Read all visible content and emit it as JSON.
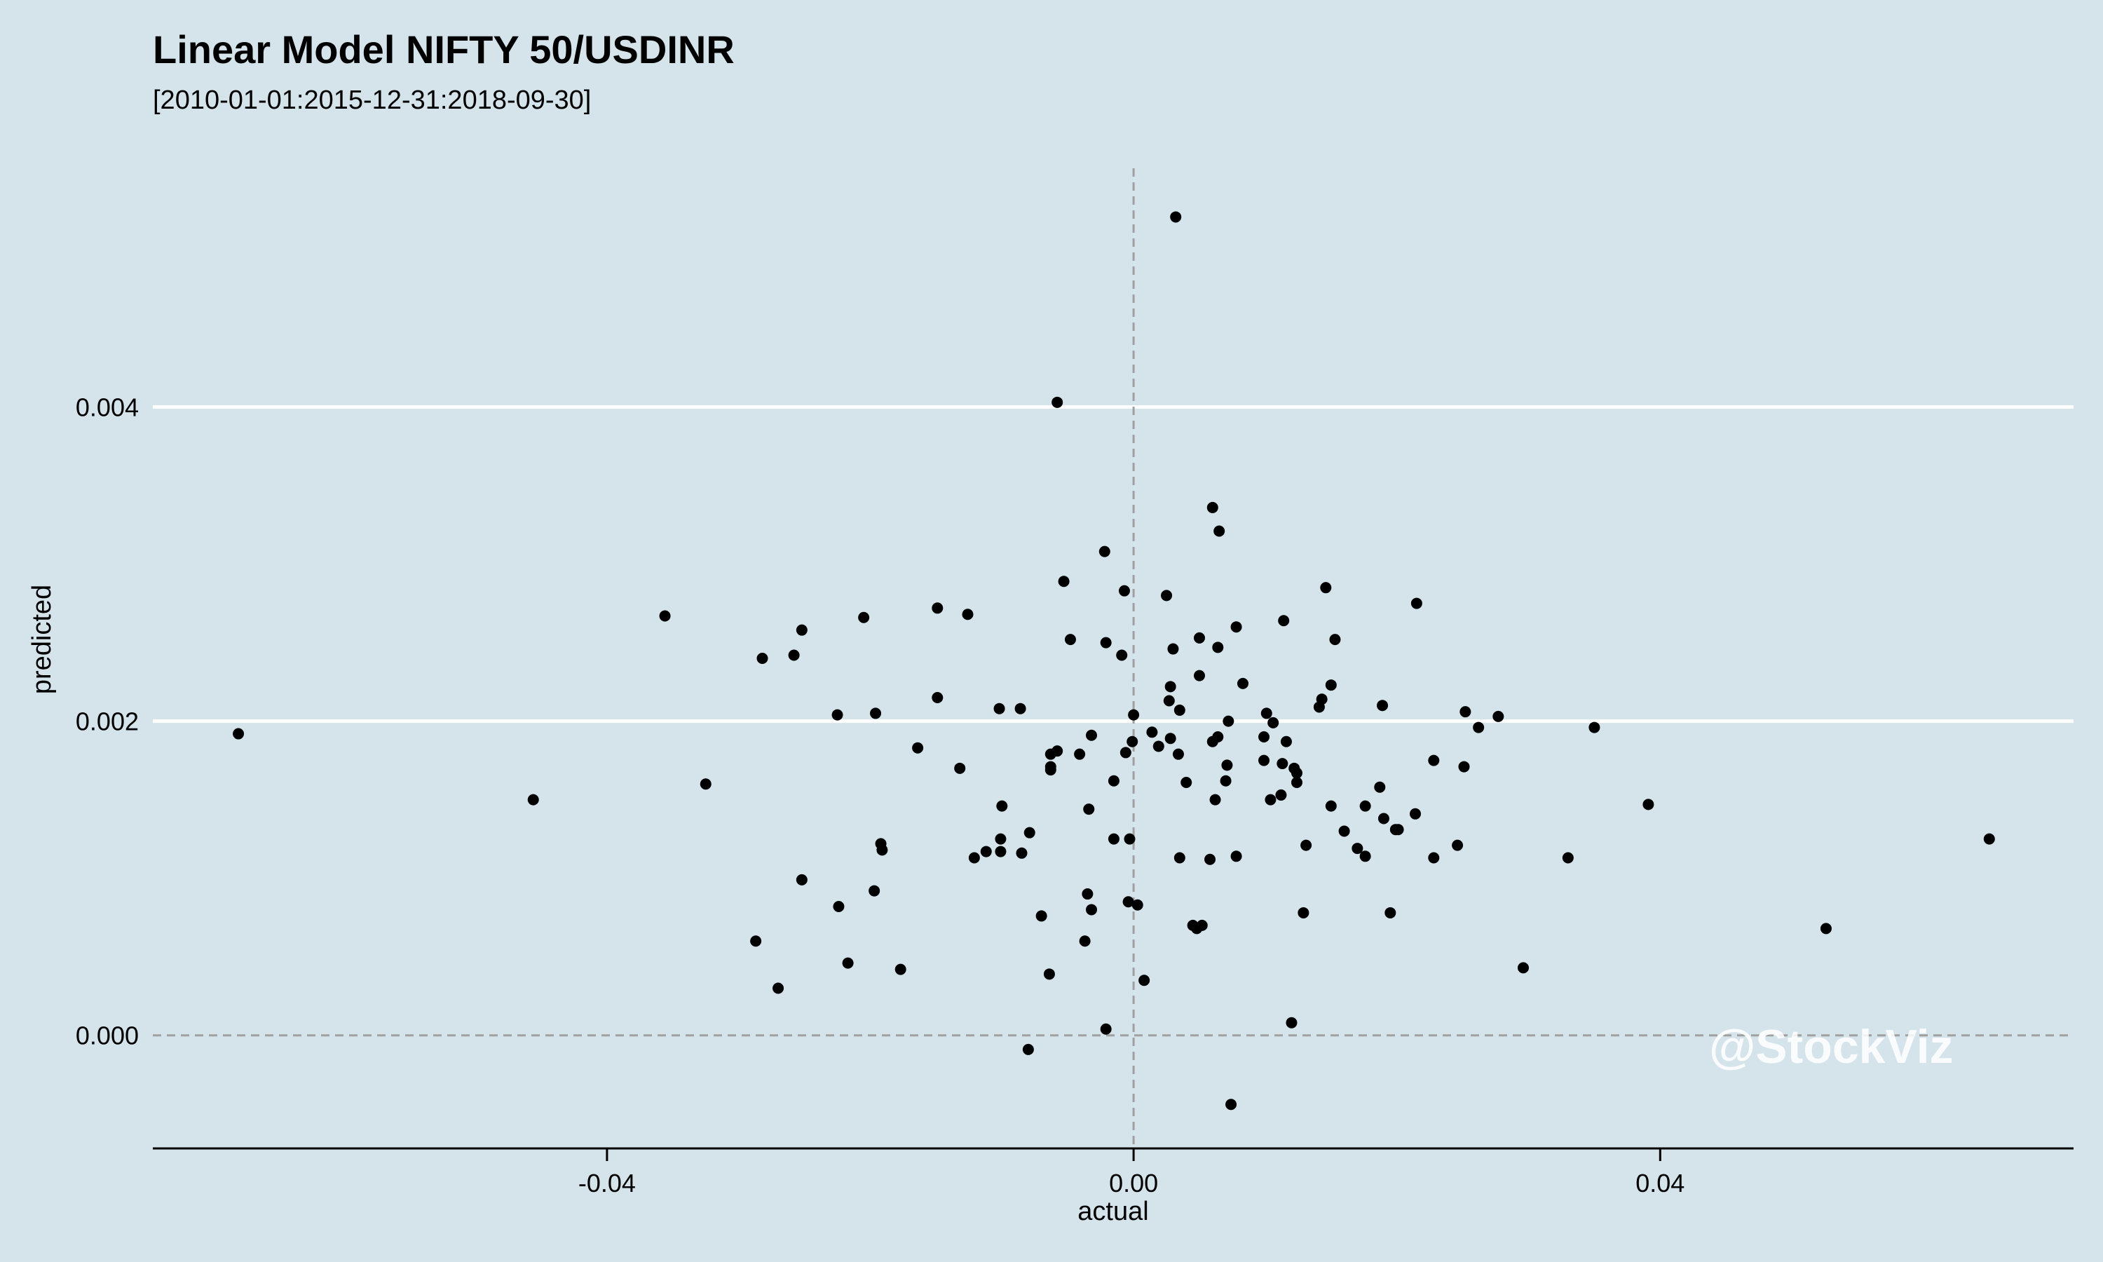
{
  "chart_data": {
    "type": "scatter",
    "title": "Linear Model NIFTY 50/USDINR",
    "subtitle": "[2010-01-01:2015-12-31:2018-09-30]",
    "xlabel": "actual",
    "ylabel": "predicted",
    "xlim": [
      -0.0745,
      0.0714
    ],
    "ylim": [
      -0.00072,
      0.00552
    ],
    "xticks": [
      -0.04,
      0.0,
      0.04
    ],
    "xtick_labels": [
      "-0.04",
      "0.00",
      "0.04"
    ],
    "yticks": [
      0.0,
      0.002,
      0.004
    ],
    "ytick_labels": [
      "0.000",
      "0.002",
      "0.004"
    ],
    "reference_lines": {
      "x": 0.0,
      "y": 0.0,
      "style": "dashed"
    },
    "grid": "horizontal major",
    "watermark": "@StockViz",
    "colors": {
      "background": "#d5e4eb",
      "points": "#000000",
      "grid": "#ffffff",
      "reference": "#a0a0a0",
      "watermark": "#ffffff"
    },
    "points": [
      [
        -0.068,
        0.00192
      ],
      [
        -0.0456,
        0.0015
      ],
      [
        -0.0356,
        0.00267
      ],
      [
        -0.0325,
        0.0016
      ],
      [
        -0.0282,
        0.0024
      ],
      [
        -0.0287,
        0.0006
      ],
      [
        -0.027,
        0.0003
      ],
      [
        -0.0258,
        0.00242
      ],
      [
        -0.0252,
        0.00258
      ],
      [
        -0.0252,
        0.00099
      ],
      [
        -0.0225,
        0.00204
      ],
      [
        -0.0224,
        0.00082
      ],
      [
        -0.0217,
        0.00046
      ],
      [
        -0.0205,
        0.00266
      ],
      [
        -0.0196,
        0.00205
      ],
      [
        -0.0197,
        0.00092
      ],
      [
        -0.0192,
        0.00122
      ],
      [
        -0.0191,
        0.00118
      ],
      [
        -0.0177,
        0.00042
      ],
      [
        -0.0164,
        0.00183
      ],
      [
        -0.0149,
        0.00272
      ],
      [
        -0.0149,
        0.00215
      ],
      [
        -0.0132,
        0.0017
      ],
      [
        -0.0126,
        0.00268
      ],
      [
        -0.0121,
        0.00113
      ],
      [
        -0.0112,
        0.00117
      ],
      [
        -0.0102,
        0.00208
      ],
      [
        -0.01,
        0.00146
      ],
      [
        -0.0101,
        0.00125
      ],
      [
        -0.0101,
        0.00117
      ],
      [
        -0.0086,
        0.00208
      ],
      [
        -0.0085,
        0.00116
      ],
      [
        -0.0079,
        0.00129
      ],
      [
        -0.008,
        -9e-05
      ],
      [
        -0.007,
        0.00076
      ],
      [
        -0.0064,
        0.00039
      ],
      [
        -0.0063,
        0.00179
      ],
      [
        -0.0063,
        0.00171
      ],
      [
        -0.0063,
        0.00169
      ],
      [
        -0.0058,
        0.00181
      ],
      [
        -0.0058,
        0.00403
      ],
      [
        -0.0053,
        0.00289
      ],
      [
        -0.0048,
        0.00252
      ],
      [
        -0.0041,
        0.00179
      ],
      [
        -0.0037,
        0.0006
      ],
      [
        -0.0035,
        0.0009
      ],
      [
        -0.0034,
        0.00144
      ],
      [
        -0.0032,
        0.0008
      ],
      [
        -0.0032,
        0.00191
      ],
      [
        -0.0022,
        0.00308
      ],
      [
        -0.0021,
        0.0025
      ],
      [
        -0.0021,
        4e-05
      ],
      [
        -0.0015,
        0.00162
      ],
      [
        -0.0015,
        0.00125
      ],
      [
        -0.0009,
        0.00242
      ],
      [
        -0.0007,
        0.00283
      ],
      [
        -0.0006,
        0.0018
      ],
      [
        -0.0004,
        0.00085
      ],
      [
        -0.0003,
        0.00125
      ],
      [
        -0.0001,
        0.00187
      ],
      [
        0.0,
        0.00204
      ],
      [
        0.0003,
        0.00083
      ],
      [
        0.0008,
        0.00035
      ],
      [
        0.0014,
        0.00193
      ],
      [
        0.0019,
        0.00184
      ],
      [
        0.0025,
        0.0028
      ],
      [
        0.0027,
        0.00213
      ],
      [
        0.0028,
        0.00222
      ],
      [
        0.0028,
        0.00189
      ],
      [
        0.003,
        0.00246
      ],
      [
        0.0032,
        0.00521
      ],
      [
        0.0034,
        0.00179
      ],
      [
        0.0035,
        0.00113
      ],
      [
        0.0035,
        0.00207
      ],
      [
        0.004,
        0.00161
      ],
      [
        0.0045,
        0.0007
      ],
      [
        0.0048,
        0.00068
      ],
      [
        0.005,
        0.00253
      ],
      [
        0.005,
        0.00229
      ],
      [
        0.0052,
        0.0007
      ],
      [
        0.0058,
        0.00112
      ],
      [
        0.006,
        0.00336
      ],
      [
        0.006,
        0.00187
      ],
      [
        0.0062,
        0.0015
      ],
      [
        0.0064,
        0.00247
      ],
      [
        0.0064,
        0.0019
      ],
      [
        0.0065,
        0.00321
      ],
      [
        0.007,
        0.00162
      ],
      [
        0.0071,
        0.00172
      ],
      [
        0.0072,
        0.002
      ],
      [
        0.0074,
        -0.00044
      ],
      [
        0.0078,
        0.00114
      ],
      [
        0.0078,
        0.0026
      ],
      [
        0.0083,
        0.00224
      ],
      [
        0.0099,
        0.00175
      ],
      [
        0.0099,
        0.0019
      ],
      [
        0.0101,
        0.00205
      ],
      [
        0.0104,
        0.0015
      ],
      [
        0.0106,
        0.00199
      ],
      [
        0.0112,
        0.00153
      ],
      [
        0.0113,
        0.00173
      ],
      [
        0.0114,
        0.00264
      ],
      [
        0.0116,
        0.00187
      ],
      [
        0.012,
        8e-05
      ],
      [
        0.0122,
        0.0017
      ],
      [
        0.0124,
        0.00167
      ],
      [
        0.0124,
        0.00161
      ],
      [
        0.0129,
        0.00078
      ],
      [
        0.0131,
        0.00121
      ],
      [
        0.0141,
        0.00209
      ],
      [
        0.0143,
        0.00214
      ],
      [
        0.0146,
        0.00285
      ],
      [
        0.015,
        0.00146
      ],
      [
        0.015,
        0.00223
      ],
      [
        0.0153,
        0.00252
      ],
      [
        0.016,
        0.0013
      ],
      [
        0.017,
        0.00119
      ],
      [
        0.0176,
        0.00146
      ],
      [
        0.0176,
        0.00114
      ],
      [
        0.0187,
        0.00158
      ],
      [
        0.0189,
        0.0021
      ],
      [
        0.019,
        0.00138
      ],
      [
        0.0195,
        0.00078
      ],
      [
        0.0199,
        0.00131
      ],
      [
        0.0201,
        0.00131
      ],
      [
        0.0214,
        0.00141
      ],
      [
        0.0215,
        0.00275
      ],
      [
        0.0228,
        0.00175
      ],
      [
        0.0228,
        0.00113
      ],
      [
        0.0246,
        0.00121
      ],
      [
        0.0251,
        0.00171
      ],
      [
        0.0252,
        0.00206
      ],
      [
        0.0262,
        0.00196
      ],
      [
        0.0277,
        0.00203
      ],
      [
        0.0296,
        0.00043
      ],
      [
        0.033,
        0.00113
      ],
      [
        0.035,
        0.00196
      ],
      [
        0.0391,
        0.00147
      ],
      [
        0.0526,
        0.00068
      ],
      [
        0.065,
        0.00125
      ]
    ]
  }
}
